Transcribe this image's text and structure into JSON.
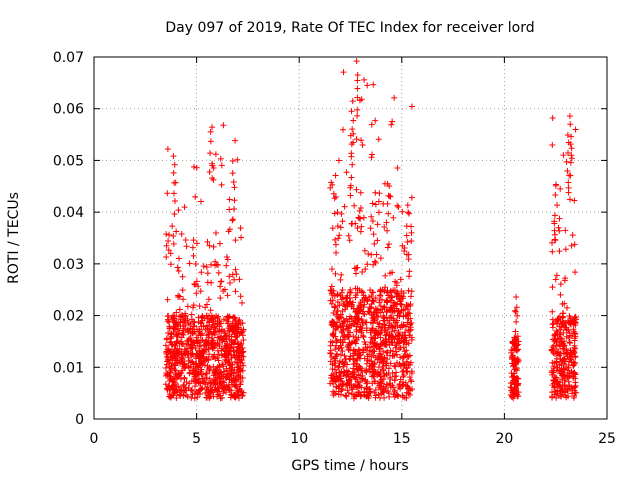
{
  "chart_data": {
    "type": "scatter",
    "title": "Day 097 of 2019, Rate Of TEC Index for receiver lord",
    "xlabel": "GPS time / hours",
    "ylabel": "ROTI / TECUs",
    "xlim": [
      0,
      25
    ],
    "ylim": [
      0,
      0.07
    ],
    "x_ticks": [
      0,
      5,
      10,
      15,
      20,
      25
    ],
    "y_ticks": [
      0,
      0.01,
      0.02,
      0.03,
      0.04,
      0.05,
      0.06,
      0.07
    ],
    "x_tick_labels": [
      "0",
      "5",
      "10",
      "15",
      "20",
      "25"
    ],
    "y_tick_labels": [
      "0",
      "0.01",
      "0.02",
      "0.03",
      "0.04",
      "0.05",
      "0.06",
      "0.07"
    ],
    "grid": true,
    "marker": "plus",
    "color": "#ff0000",
    "clusters": [
      {
        "x_range": [
          3.5,
          7.3
        ],
        "typical_y": [
          0.004,
          0.02
        ],
        "max_y": 0.058
      },
      {
        "x_range": [
          11.5,
          15.5
        ],
        "typical_y": [
          0.004,
          0.025
        ],
        "max_y": 0.07
      },
      {
        "x_range": [
          20.3,
          20.7
        ],
        "typical_y": [
          0.004,
          0.015
        ],
        "max_y": 0.025
      },
      {
        "x_range": [
          22.3,
          23.5
        ],
        "typical_y": [
          0.004,
          0.02
        ],
        "max_y": 0.059
      }
    ],
    "peaks": [
      {
        "x": 3.9,
        "y": 0.0515
      },
      {
        "x": 5.7,
        "y": 0.0575
      },
      {
        "x": 6.8,
        "y": 0.0503
      },
      {
        "x": 12.8,
        "y": 0.0695
      },
      {
        "x": 12.6,
        "y": 0.0625
      },
      {
        "x": 12.55,
        "y": 0.055
      },
      {
        "x": 14.3,
        "y": 0.044
      },
      {
        "x": 15.3,
        "y": 0.04
      },
      {
        "x": 20.6,
        "y": 0.0245
      },
      {
        "x": 23.2,
        "y": 0.059
      },
      {
        "x": 23.1,
        "y": 0.0555
      },
      {
        "x": 22.5,
        "y": 0.0455
      }
    ]
  }
}
